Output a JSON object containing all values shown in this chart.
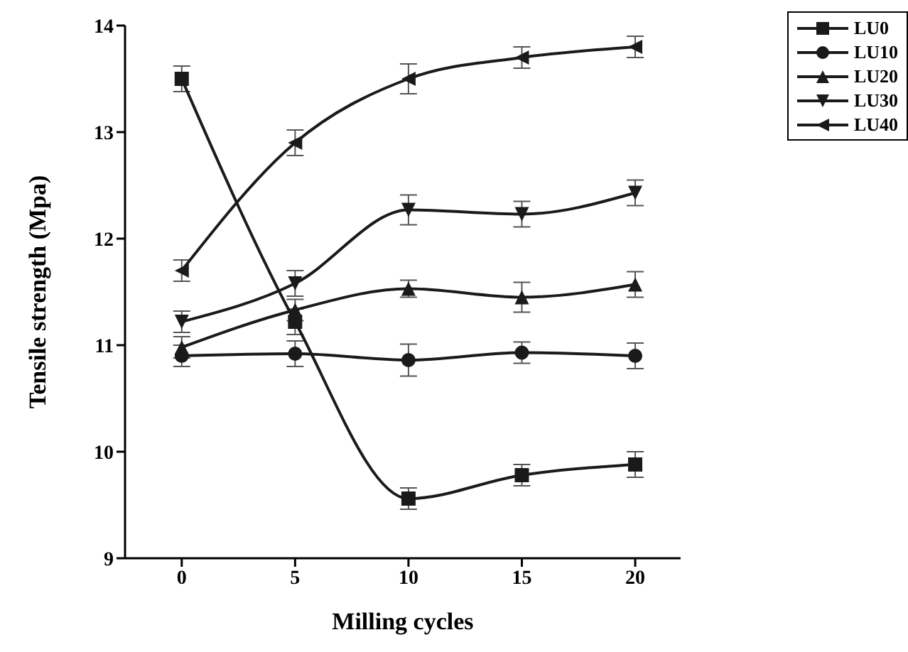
{
  "chart_data": {
    "type": "line",
    "xlabel": "Milling cycles",
    "ylabel": "Tensile strength (Mpa)",
    "x": [
      0,
      5,
      10,
      15,
      20
    ],
    "xlim": [
      -2.5,
      22
    ],
    "xticks": [
      0,
      5,
      10,
      15,
      20
    ],
    "ylim": [
      9,
      14
    ],
    "yticks": [
      9,
      10,
      11,
      12,
      13,
      14
    ],
    "legend": "top right",
    "line_style": "solid",
    "series": [
      {
        "name": "LU0",
        "color": "#1a1a1a",
        "marker": "square",
        "values": [
          13.5,
          11.22,
          9.56,
          9.78,
          9.88
        ],
        "errors": [
          0.12,
          0.12,
          0.1,
          0.1,
          0.12
        ]
      },
      {
        "name": "LU10",
        "color": "#1a1a1a",
        "marker": "circle",
        "values": [
          10.9,
          10.92,
          10.86,
          10.93,
          10.9
        ],
        "errors": [
          0.1,
          0.12,
          0.15,
          0.1,
          0.12
        ]
      },
      {
        "name": "LU20",
        "color": "#1a1a1a",
        "marker": "triangle",
        "values": [
          10.98,
          11.33,
          11.53,
          11.45,
          11.57
        ],
        "errors": [
          0.1,
          0.1,
          0.08,
          0.14,
          0.12
        ]
      },
      {
        "name": "LU30",
        "color": "#1a1a1a",
        "marker": "triangle-down",
        "values": [
          11.22,
          11.58,
          12.27,
          12.23,
          12.43
        ],
        "errors": [
          0.1,
          0.12,
          0.14,
          0.12,
          0.12
        ]
      },
      {
        "name": "LU40",
        "color": "#1a1a1a",
        "marker": "triangle-left",
        "values": [
          11.7,
          12.9,
          13.5,
          13.7,
          13.8
        ],
        "errors": [
          0.1,
          0.12,
          0.14,
          0.1,
          0.1
        ]
      }
    ]
  }
}
